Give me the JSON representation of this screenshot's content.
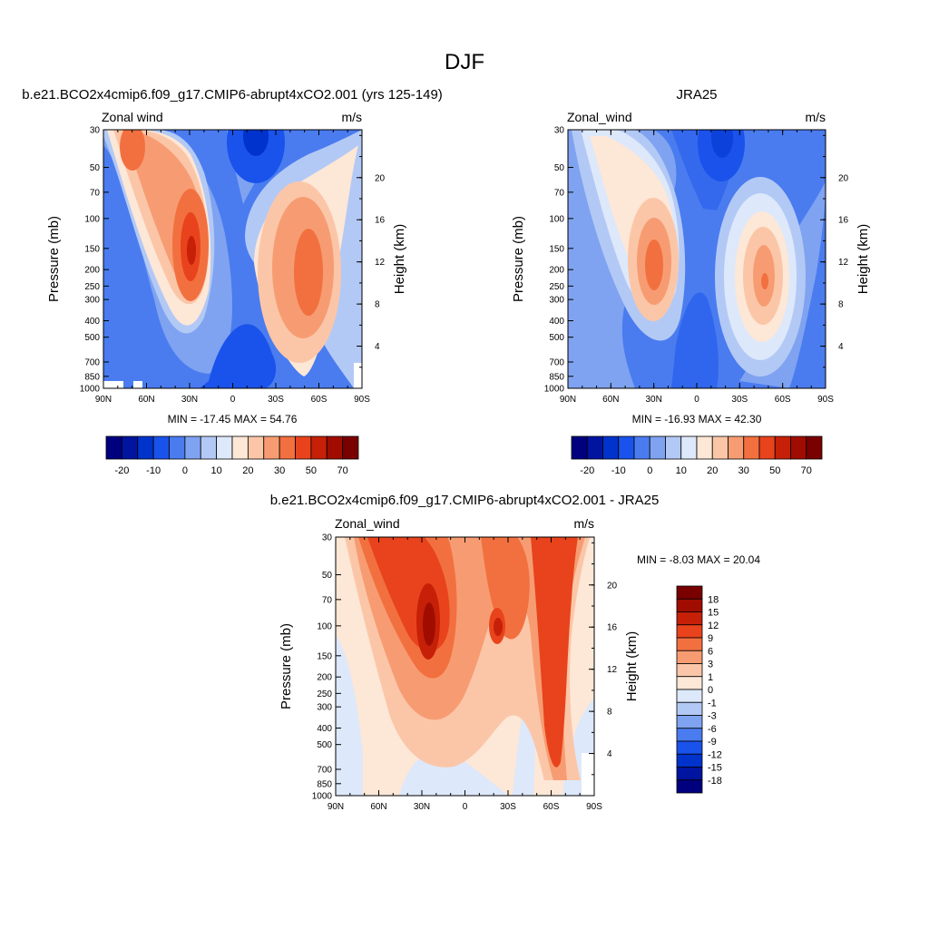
{
  "figure": {
    "title": "DJF"
  },
  "colors": {
    "scale14": [
      "#00007f",
      "#0014a0",
      "#0033cc",
      "#1a53eb",
      "#4a7cf0",
      "#7fa3f0",
      "#b3c9f5",
      "#dde8fb",
      "#fde7d6",
      "#fbc6a8",
      "#f79c72",
      "#f2703f",
      "#e8431c",
      "#c62008",
      "#a00d00",
      "#7a0000"
    ],
    "scale_diff": [
      "#00007f",
      "#0014a0",
      "#0033cc",
      "#1a53eb",
      "#4a7cf0",
      "#7fa3f0",
      "#b3c9f5",
      "#dde8fb",
      "#fde7d6",
      "#fbc6a8",
      "#f79c72",
      "#f2703f",
      "#e8431c",
      "#c62008",
      "#a00d00",
      "#7a0000"
    ]
  },
  "chart_data": [
    {
      "type": "heatmap",
      "panel": "model",
      "title": "b.e21.BCO2x4cmip6.f09_g17.CMIP6-abrupt4xCO2.001 (yrs 125-149)",
      "left_label": "Zonal wind",
      "right_label": "m/s",
      "xlabel": "",
      "ylabel": "Pressure (mb)",
      "ylabel_right": "Height (km)",
      "x_ticks": [
        "90N",
        "60N",
        "30N",
        "0",
        "30S",
        "60S",
        "90S"
      ],
      "y_ticks": [
        "30",
        "50",
        "70",
        "100",
        "150",
        "200",
        "250",
        "300",
        "400",
        "500",
        "700",
        "850",
        "1000"
      ],
      "y_ticks_right": [
        "20",
        "16",
        "12",
        "8",
        "4"
      ],
      "stats": "MIN = -17.45  MAX =  54.76",
      "min": -17.45,
      "max": 54.76,
      "colorbar_labels": [
        "-20",
        "-10",
        "0",
        "10",
        "20",
        "30",
        "50",
        "70"
      ],
      "jets": [
        {
          "lat": 32,
          "pressure": 150,
          "max_ms": 54.76
        },
        {
          "lat": -50,
          "pressure": 200,
          "max_ms": 40
        }
      ]
    },
    {
      "type": "heatmap",
      "panel": "obs",
      "title": "JRA25",
      "left_label": "Zonal_wind",
      "right_label": "m/s",
      "xlabel": "",
      "ylabel": "Pressure (mb)",
      "ylabel_right": "Height (km)",
      "x_ticks": [
        "90N",
        "60N",
        "30N",
        "0",
        "30S",
        "60S",
        "90S"
      ],
      "y_ticks": [
        "30",
        "50",
        "70",
        "100",
        "150",
        "200",
        "250",
        "300",
        "400",
        "500",
        "700",
        "850",
        "1000"
      ],
      "y_ticks_right": [
        "20",
        "16",
        "12",
        "8",
        "4"
      ],
      "stats": "MIN = -16.93  MAX =  42.30",
      "min": -16.93,
      "max": 42.3,
      "colorbar_labels": [
        "-20",
        "-10",
        "0",
        "10",
        "20",
        "30",
        "50",
        "70"
      ],
      "jets": [
        {
          "lat": 30,
          "pressure": 200,
          "max_ms": 42.3
        },
        {
          "lat": -48,
          "pressure": 250,
          "max_ms": 32
        }
      ]
    },
    {
      "type": "heatmap",
      "panel": "difference",
      "title": "b.e21.BCO2x4cmip6.f09_g17.CMIP6-abrupt4xCO2.001 - JRA25",
      "left_label": "Zonal_wind",
      "right_label": "m/s",
      "xlabel": "",
      "ylabel": "Pressure (mb)",
      "ylabel_right": "Height (km)",
      "x_ticks": [
        "90N",
        "60N",
        "30N",
        "0",
        "30S",
        "60S",
        "90S"
      ],
      "y_ticks": [
        "30",
        "50",
        "70",
        "100",
        "150",
        "200",
        "250",
        "300",
        "400",
        "500",
        "700",
        "850",
        "1000"
      ],
      "y_ticks_right": [
        "20",
        "16",
        "12",
        "8",
        "4"
      ],
      "stats": "MIN =  -8.03  MAX =  20.04",
      "min": -8.03,
      "max": 20.04,
      "colorbar_labels": [
        "18",
        "15",
        "12",
        "9",
        "6",
        "3",
        "1",
        "0",
        "-1",
        "-3",
        "-6",
        "-9",
        "-12",
        "-15",
        "-18"
      ]
    }
  ]
}
